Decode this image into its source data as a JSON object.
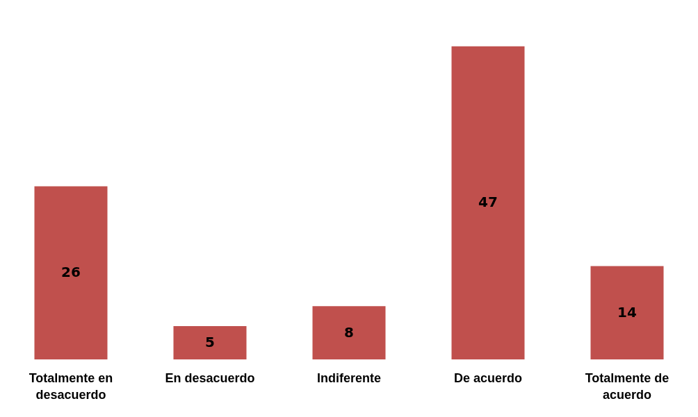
{
  "chart_data": {
    "type": "bar",
    "categories": [
      "Totalmente en desacuerdo",
      "En desacuerdo",
      "Indiferente",
      "De acuerdo",
      "Totalmente de acuerdo"
    ],
    "values": [
      26,
      5,
      8,
      47,
      14
    ],
    "color": "#c0504d",
    "data_labels": true
  }
}
